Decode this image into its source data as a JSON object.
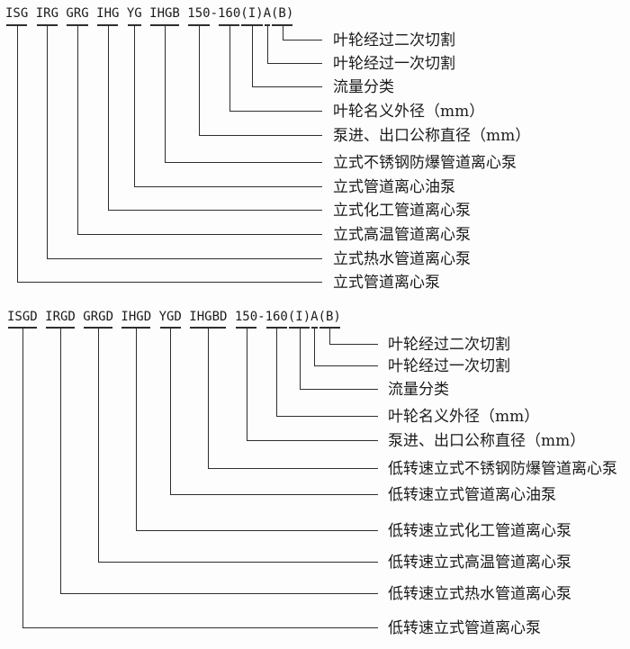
{
  "colors": {
    "background": "#fdfdfd",
    "line": "#2e2e2e",
    "text": "#1b1b1b"
  },
  "diagrams": [
    {
      "title": "vertical pipeline centrifugal pump model designation",
      "header": "ISG IRG GRG IHG YG IHGB 150-160(I)A(B)",
      "segments": [
        "ISG",
        "IRG",
        "GRG",
        "IHG",
        "YG",
        "IHGB",
        "150",
        "160",
        "(I)",
        "A",
        "(B)"
      ],
      "labels": [
        "叶轮经过二次切割",
        "叶轮经过一次切割",
        "流量分类",
        "叶轮名义外径（mm）",
        "泵进、出口公称直径（mm）",
        "立式不锈钢防爆管道离心泵",
        "立式管道离心油泵",
        "立式化工管道离心泵",
        "立式高温管道离心泵",
        "立式热水管道离心泵",
        "立式管道离心泵"
      ]
    },
    {
      "title": "low-speed vertical pipeline centrifugal pump model designation",
      "header": "ISGD IRGD GRGD IHGD YGD IHGBD 150-160(I)A(B)",
      "segments": [
        "ISGD",
        "IRGD",
        "GRGD",
        "IHGD",
        "YGD",
        "IHGBD",
        "150",
        "160",
        "(I)",
        "A",
        "(B)"
      ],
      "labels": [
        "叶轮经过二次切割",
        "叶轮经过一次切割",
        "流量分类",
        "叶轮名义外径（mm）",
        "泵进、出口公称直径（mm）",
        "低转速立式不锈钢防爆管道离心泵",
        "低转速立式管道离心油泵",
        "低转速立式化工管道离心泵",
        "低转速立式高温管道离心泵",
        "低转速立式热水管道离心泵",
        "低转速立式管道离心泵"
      ]
    }
  ]
}
